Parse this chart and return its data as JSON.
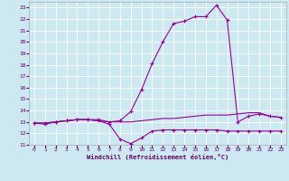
{
  "bg_color": "#cce8f0",
  "line_color": "#990099",
  "grid_color": "#ffffff",
  "xlabel": "Windchill (Refroidissement éolien,°C)",
  "xlabel_color": "#660066",
  "tick_color": "#660066",
  "xlim": [
    -0.5,
    23.5
  ],
  "ylim": [
    11,
    23.5
  ],
  "yticks": [
    11,
    12,
    13,
    14,
    15,
    16,
    17,
    18,
    19,
    20,
    21,
    22,
    23
  ],
  "xticks": [
    0,
    1,
    2,
    3,
    4,
    5,
    6,
    7,
    8,
    9,
    10,
    11,
    12,
    13,
    14,
    15,
    16,
    17,
    18,
    19,
    20,
    21,
    22,
    23
  ],
  "line1_x": [
    0,
    1,
    2,
    3,
    4,
    5,
    6,
    7,
    8,
    9,
    10,
    11,
    12,
    13,
    14,
    15,
    16,
    17,
    18,
    19,
    20,
    21,
    22,
    23
  ],
  "line1_y": [
    12.9,
    12.8,
    13.0,
    13.1,
    13.2,
    13.2,
    13.2,
    13.0,
    13.1,
    13.9,
    15.8,
    18.1,
    20.0,
    21.6,
    21.8,
    22.2,
    22.2,
    23.2,
    21.9,
    13.0,
    13.5,
    13.7,
    13.5,
    13.4
  ],
  "line2_x": [
    0,
    1,
    2,
    3,
    4,
    5,
    6,
    7,
    8,
    9,
    10,
    11,
    12,
    13,
    14,
    15,
    16,
    17,
    18,
    19,
    20,
    21,
    22,
    23
  ],
  "line2_y": [
    12.9,
    12.9,
    13.0,
    13.1,
    13.2,
    13.2,
    13.1,
    12.8,
    11.5,
    11.1,
    11.6,
    12.2,
    12.3,
    12.3,
    12.3,
    12.3,
    12.3,
    12.3,
    12.2,
    12.2,
    12.2,
    12.2,
    12.2,
    12.2
  ],
  "line3_x": [
    0,
    1,
    2,
    3,
    4,
    5,
    6,
    7,
    8,
    9,
    10,
    11,
    12,
    13,
    14,
    15,
    16,
    17,
    18,
    19,
    20,
    21,
    22,
    23
  ],
  "line3_y": [
    12.9,
    12.9,
    13.0,
    13.1,
    13.2,
    13.2,
    13.1,
    13.0,
    13.0,
    13.0,
    13.1,
    13.2,
    13.3,
    13.3,
    13.4,
    13.5,
    13.6,
    13.6,
    13.6,
    13.7,
    13.8,
    13.8,
    13.5,
    13.4
  ]
}
